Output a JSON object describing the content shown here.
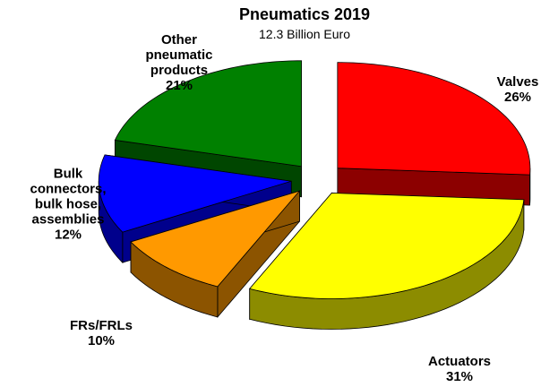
{
  "chart_data": {
    "type": "pie3d",
    "title": "Pneumatics 2019",
    "subtitle": "12.3 Billion Euro",
    "categories": [
      "Valves",
      "Actuators",
      "FRs/FRLs",
      "Bulk connectors, bulk hose, assemblies",
      "Other pneumatic products"
    ],
    "values": [
      26,
      31,
      10,
      12,
      21
    ],
    "value_labels": [
      "26%",
      "31%",
      "10%",
      "12%",
      "21%"
    ],
    "colors": [
      "#ff0000",
      "#ffff00",
      "#ff9900",
      "#0000ff",
      "#008000"
    ]
  }
}
